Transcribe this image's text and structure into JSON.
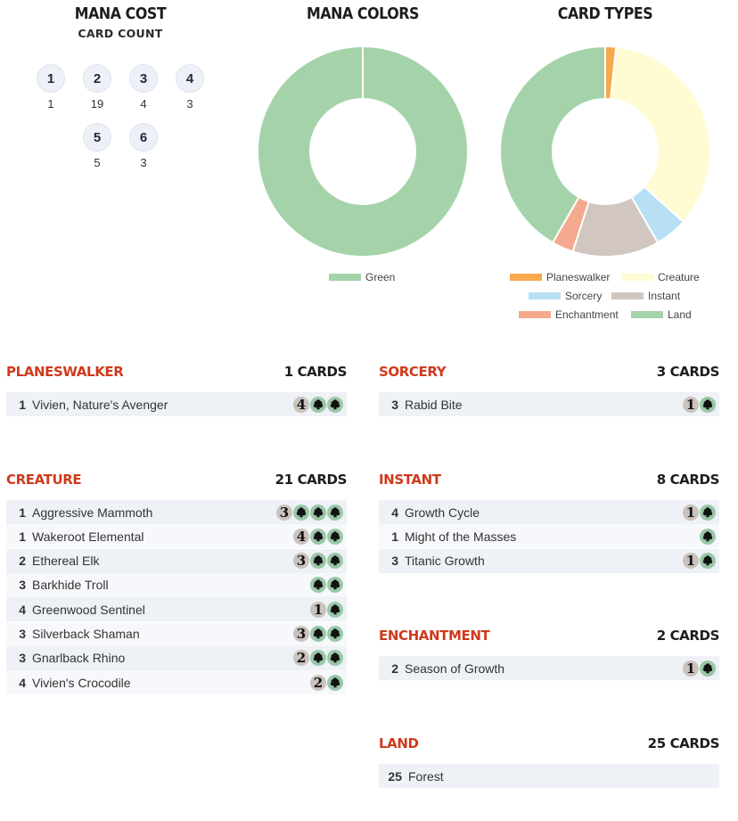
{
  "mana_cost": {
    "title": "MANA COST",
    "subtitle": "CARD COUNT",
    "cells": [
      {
        "cost": "1",
        "count": "1"
      },
      {
        "cost": "2",
        "count": "19"
      },
      {
        "cost": "3",
        "count": "4"
      },
      {
        "cost": "4",
        "count": "3"
      },
      {
        "cost": "5",
        "count": "5"
      },
      {
        "cost": "6",
        "count": "3"
      }
    ]
  },
  "mana_colors": {
    "title": "MANA COLORS",
    "legend": [
      {
        "label": "Green",
        "color": "#a4d3a9"
      }
    ]
  },
  "card_types": {
    "title": "CARD TYPES",
    "legend": [
      {
        "label": "Planeswalker",
        "color": "#f8a94c"
      },
      {
        "label": "Creature",
        "color": "#fffbd3"
      },
      {
        "label": "Sorcery",
        "color": "#b8e0f5"
      },
      {
        "label": "Instant",
        "color": "#d1c6c0"
      },
      {
        "label": "Enchantment",
        "color": "#f5a98e"
      },
      {
        "label": "Land",
        "color": "#a4d3a9"
      }
    ]
  },
  "chart_data": [
    {
      "type": "pie",
      "title": "MANA COLORS",
      "categories": [
        "Green"
      ],
      "values": [
        1
      ],
      "colors": [
        "#a4d3a9"
      ],
      "legend": "bottom"
    },
    {
      "type": "pie",
      "title": "CARD TYPES",
      "categories": [
        "Planeswalker",
        "Creature",
        "Sorcery",
        "Instant",
        "Enchantment",
        "Land"
      ],
      "values": [
        1,
        21,
        3,
        8,
        2,
        25
      ],
      "colors": [
        "#f8a94c",
        "#fffbd3",
        "#b8e0f5",
        "#d1c6c0",
        "#f5a98e",
        "#a4d3a9"
      ],
      "legend": "bottom"
    }
  ],
  "groups": {
    "planeswalker": {
      "title": "PLANESWALKER",
      "count": "1 CARDS",
      "rows": [
        {
          "qty": "1",
          "name": "Vivien, Nature's Avenger",
          "generic": "4",
          "green": 2
        }
      ]
    },
    "creature": {
      "title": "CREATURE",
      "count": "21 CARDS",
      "rows": [
        {
          "qty": "1",
          "name": "Aggressive Mammoth",
          "generic": "3",
          "green": 3
        },
        {
          "qty": "1",
          "name": "Wakeroot Elemental",
          "generic": "4",
          "green": 2
        },
        {
          "qty": "2",
          "name": "Ethereal Elk",
          "generic": "3",
          "green": 2
        },
        {
          "qty": "3",
          "name": "Barkhide Troll",
          "generic": "",
          "green": 2
        },
        {
          "qty": "4",
          "name": "Greenwood Sentinel",
          "generic": "1",
          "green": 1
        },
        {
          "qty": "3",
          "name": "Silverback Shaman",
          "generic": "3",
          "green": 2
        },
        {
          "qty": "3",
          "name": "Gnarlback Rhino",
          "generic": "2",
          "green": 2
        },
        {
          "qty": "4",
          "name": "Vivien's Crocodile",
          "generic": "2",
          "green": 1
        }
      ]
    },
    "sorcery": {
      "title": "SORCERY",
      "count": "3 CARDS",
      "rows": [
        {
          "qty": "3",
          "name": "Rabid Bite",
          "generic": "1",
          "green": 1
        }
      ]
    },
    "instant": {
      "title": "INSTANT",
      "count": "8 CARDS",
      "rows": [
        {
          "qty": "4",
          "name": "Growth Cycle",
          "generic": "1",
          "green": 1
        },
        {
          "qty": "1",
          "name": "Might of the Masses",
          "generic": "",
          "green": 1
        },
        {
          "qty": "3",
          "name": "Titanic Growth",
          "generic": "1",
          "green": 1
        }
      ]
    },
    "enchantment": {
      "title": "ENCHANTMENT",
      "count": "2 CARDS",
      "rows": [
        {
          "qty": "2",
          "name": "Season of Growth",
          "generic": "1",
          "green": 1
        }
      ]
    },
    "land": {
      "title": "LAND",
      "count": "25 CARDS",
      "rows": [
        {
          "qty": "25",
          "name": "Forest",
          "generic": "",
          "green": 0
        }
      ]
    }
  }
}
